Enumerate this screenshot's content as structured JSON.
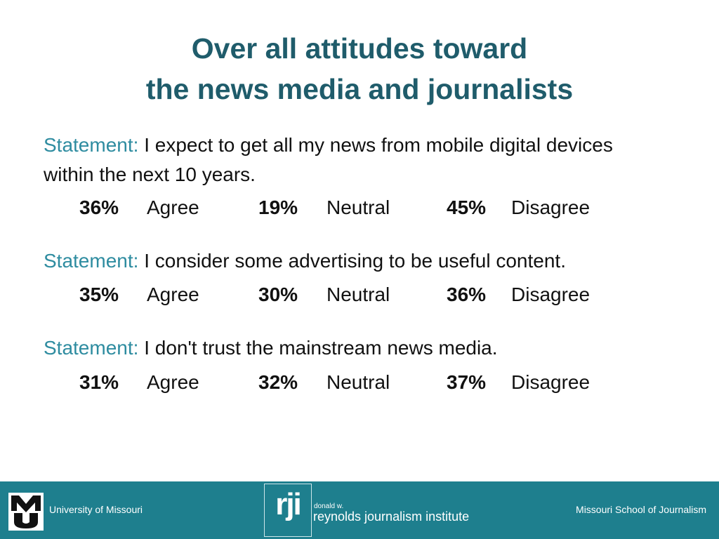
{
  "slide": {
    "title_line1": "Over all attitudes toward",
    "title_line2": "the news media and journalists"
  },
  "statements": [
    {
      "label": "Statement:",
      "text": "I expect to get all my news from mobile digital devices within the next 10 years.",
      "agree_pct": "36%",
      "agree_label": "Agree",
      "neutral_pct": "19%",
      "neutral_label": "Neutral",
      "disagree_pct": "45%",
      "disagree_label": "Disagree"
    },
    {
      "label": "Statement:",
      "text": "I consider some advertising to be useful content.",
      "agree_pct": "35%",
      "agree_label": "Agree",
      "neutral_pct": "30%",
      "neutral_label": "Neutral",
      "disagree_pct": "36%",
      "disagree_label": "Disagree"
    },
    {
      "label": "Statement:",
      "text": "I don't trust the mainstream news media.",
      "agree_pct": "31%",
      "agree_label": "Agree",
      "neutral_pct": "32%",
      "neutral_label": "Neutral",
      "disagree_pct": "37%",
      "disagree_label": "Disagree"
    }
  ],
  "footer": {
    "left_text": "University of Missouri",
    "right_text": "Missouri School of Journalism",
    "rji_mark": "rji",
    "rji_small": "donald w.",
    "rji_name": "reynolds journalism institute",
    "mu_logo_icon": "mu-logo-icon",
    "background_color": "#1e7f8e"
  },
  "colors": {
    "title": "#1f5c6b",
    "statement_label": "#2e8ca0"
  }
}
